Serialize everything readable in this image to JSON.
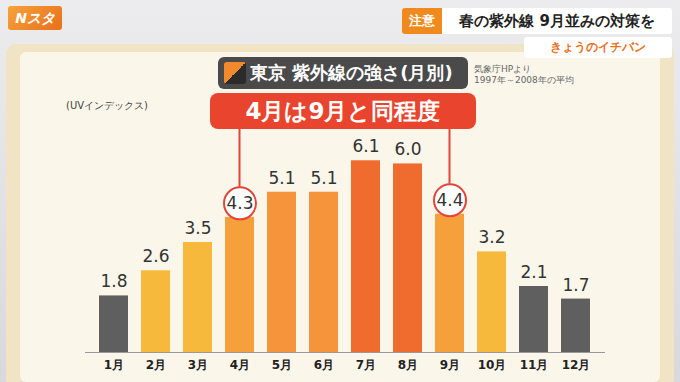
{
  "broadcast": {
    "program": "Nスタ",
    "tag": "注意",
    "headline": "春の紫外線 9月並みの対策を",
    "corner": "きょうのイチバン"
  },
  "chart_data": {
    "type": "bar",
    "title": "東京 紫外線の強さ(月別)",
    "source": [
      "気象庁HPより",
      "1997年～2008年の平均"
    ],
    "y_label": "(UVインデックス)",
    "categories": [
      "1月",
      "2月",
      "3月",
      "4月",
      "5月",
      "6月",
      "7月",
      "8月",
      "9月",
      "10月",
      "11月",
      "12月"
    ],
    "values": [
      1.8,
      2.6,
      3.5,
      4.3,
      5.1,
      5.1,
      6.1,
      6.0,
      4.4,
      3.2,
      2.1,
      1.7
    ],
    "value_labels": [
      "1.8",
      "2.6",
      "3.5",
      "4.3",
      "5.1",
      "5.1",
      "6.1",
      "6.0",
      "4.4",
      "3.2",
      "2.1",
      "1.7"
    ],
    "colors": [
      "#5f5f5f",
      "#f6b93b",
      "#f6b93b",
      "#f5a03a",
      "#f5943a",
      "#f5943a",
      "#ef6b2e",
      "#ef6b2e",
      "#f5a03a",
      "#f6b93b",
      "#5f5f5f",
      "#5f5f5f"
    ],
    "ylim": [
      0,
      7
    ],
    "tick_labels": "x",
    "data_labels": true,
    "annotation": {
      "text": "4月は9月と同程度",
      "highlight": [
        "4月",
        "9月"
      ]
    }
  }
}
